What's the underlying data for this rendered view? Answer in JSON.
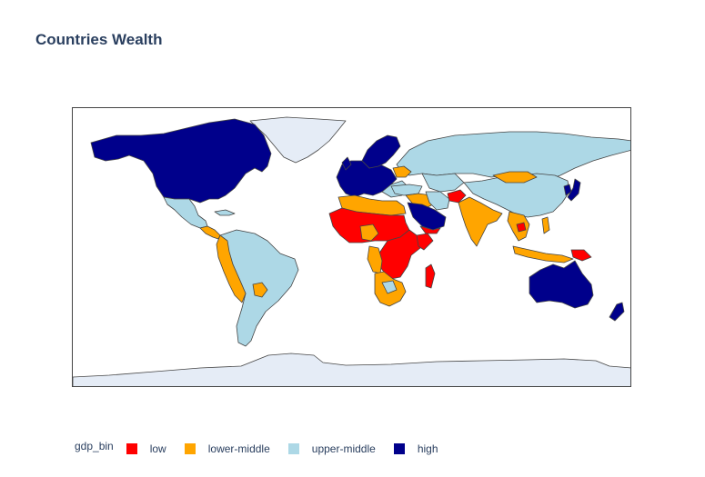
{
  "title": "Countries Wealth",
  "legend": {
    "title": "gdp_bin",
    "items": [
      {
        "label": "low",
        "color": "#ff0000"
      },
      {
        "label": "lower-middle",
        "color": "#ffa500"
      },
      {
        "label": "upper-middle",
        "color": "#add8e6"
      },
      {
        "label": "high",
        "color": "#00008b"
      }
    ]
  },
  "map": {
    "projection": "equirectangular",
    "ocean_color": "#ffffff",
    "no_data_color": "#e5ecf6",
    "border_color": "#444444"
  }
}
